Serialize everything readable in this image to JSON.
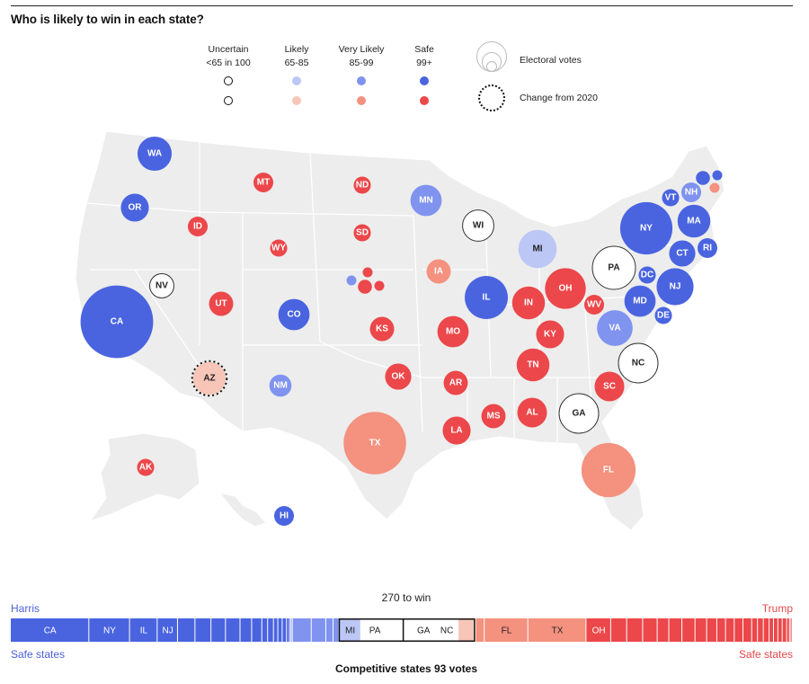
{
  "title": "Who is likely to win in each state?",
  "colors": {
    "blue_safe": "#4a64e0",
    "blue_very_likely": "#7f93ef",
    "blue_likely": "#bcc7f6",
    "red_safe": "#ec474a",
    "red_very_likely": "#f4917f",
    "red_likely": "#f8c6b8",
    "uncertain": "#ffffff",
    "land": "#ededed",
    "border": "#ffffff"
  },
  "legend": {
    "categories": [
      {
        "name": "Uncertain",
        "range": "<65 in 100",
        "blue": "uncertain",
        "red": "uncertain"
      },
      {
        "name": "Likely",
        "range": "65-85",
        "blue": "blue_likely",
        "red": "red_likely"
      },
      {
        "name": "Very Likely",
        "range": "85-99",
        "blue": "blue_very_likely",
        "red": "red_very_likely"
      },
      {
        "name": "Safe",
        "range": "99+",
        "blue": "blue_safe",
        "red": "red_safe"
      }
    ],
    "electoral_votes_label": "Electoral votes",
    "change_label": "Change from 2020"
  },
  "states": [
    {
      "abbr": "WA",
      "cat": "blue_safe",
      "ev": 12,
      "label": true
    },
    {
      "abbr": "OR",
      "cat": "blue_safe",
      "ev": 8,
      "label": true
    },
    {
      "abbr": "CA",
      "cat": "blue_safe",
      "ev": 54,
      "label": true
    },
    {
      "abbr": "NV",
      "cat": "uncertain",
      "ev": 6,
      "label": true
    },
    {
      "abbr": "ID",
      "cat": "red_safe",
      "ev": 4,
      "label": true
    },
    {
      "abbr": "MT",
      "cat": "red_safe",
      "ev": 4,
      "label": true
    },
    {
      "abbr": "WY",
      "cat": "red_safe",
      "ev": 3,
      "label": true
    },
    {
      "abbr": "UT",
      "cat": "red_safe",
      "ev": 6,
      "label": true
    },
    {
      "abbr": "AZ",
      "cat": "red_likely",
      "ev": 11,
      "label": true,
      "changed": true
    },
    {
      "abbr": "CO",
      "cat": "blue_safe",
      "ev": 10,
      "label": true
    },
    {
      "abbr": "NM",
      "cat": "blue_very_likely",
      "ev": 5,
      "label": true
    },
    {
      "abbr": "ND",
      "cat": "red_safe",
      "ev": 3,
      "label": true
    },
    {
      "abbr": "SD",
      "cat": "red_safe",
      "ev": 3,
      "label": true
    },
    {
      "abbr": "NE-AL",
      "cat": "red_safe",
      "ev": 2,
      "label": false
    },
    {
      "abbr": "NE-1",
      "cat": "red_safe",
      "ev": 1,
      "label": false
    },
    {
      "abbr": "NE-2",
      "cat": "blue_very_likely",
      "ev": 1,
      "label": false
    },
    {
      "abbr": "NE-3",
      "cat": "red_safe",
      "ev": 1,
      "label": false
    },
    {
      "abbr": "KS",
      "cat": "red_safe",
      "ev": 6,
      "label": true
    },
    {
      "abbr": "OK",
      "cat": "red_safe",
      "ev": 7,
      "label": true
    },
    {
      "abbr": "TX",
      "cat": "red_very_likely",
      "ev": 40,
      "label": true
    },
    {
      "abbr": "MN",
      "cat": "blue_very_likely",
      "ev": 10,
      "label": true
    },
    {
      "abbr": "IA",
      "cat": "red_very_likely",
      "ev": 6,
      "label": true
    },
    {
      "abbr": "MO",
      "cat": "red_safe",
      "ev": 10,
      "label": true
    },
    {
      "abbr": "AR",
      "cat": "red_safe",
      "ev": 6,
      "label": true
    },
    {
      "abbr": "LA",
      "cat": "red_safe",
      "ev": 8,
      "label": true
    },
    {
      "abbr": "WI",
      "cat": "uncertain",
      "ev": 10,
      "label": true
    },
    {
      "abbr": "IL",
      "cat": "blue_safe",
      "ev": 19,
      "label": true
    },
    {
      "abbr": "MI",
      "cat": "blue_likely",
      "ev": 15,
      "label": true
    },
    {
      "abbr": "IN",
      "cat": "red_safe",
      "ev": 11,
      "label": true
    },
    {
      "abbr": "OH",
      "cat": "red_safe",
      "ev": 17,
      "label": true
    },
    {
      "abbr": "KY",
      "cat": "red_safe",
      "ev": 8,
      "label": true
    },
    {
      "abbr": "TN",
      "cat": "red_safe",
      "ev": 11,
      "label": true
    },
    {
      "abbr": "MS",
      "cat": "red_safe",
      "ev": 6,
      "label": true
    },
    {
      "abbr": "AL",
      "cat": "red_safe",
      "ev": 9,
      "label": true
    },
    {
      "abbr": "GA",
      "cat": "uncertain",
      "ev": 16,
      "label": true
    },
    {
      "abbr": "FL",
      "cat": "red_very_likely",
      "ev": 30,
      "label": true
    },
    {
      "abbr": "SC",
      "cat": "red_safe",
      "ev": 9,
      "label": true
    },
    {
      "abbr": "NC",
      "cat": "uncertain",
      "ev": 16,
      "label": true
    },
    {
      "abbr": "VA",
      "cat": "blue_very_likely",
      "ev": 13,
      "label": true
    },
    {
      "abbr": "WV",
      "cat": "red_safe",
      "ev": 4,
      "label": true
    },
    {
      "abbr": "PA",
      "cat": "uncertain",
      "ev": 19,
      "label": true
    },
    {
      "abbr": "NY",
      "cat": "blue_safe",
      "ev": 28,
      "label": true
    },
    {
      "abbr": "NJ",
      "cat": "blue_safe",
      "ev": 14,
      "label": true
    },
    {
      "abbr": "DE",
      "cat": "blue_safe",
      "ev": 3,
      "label": true
    },
    {
      "abbr": "MD",
      "cat": "blue_safe",
      "ev": 10,
      "label": true
    },
    {
      "abbr": "DC",
      "cat": "blue_safe",
      "ev": 3,
      "label": true
    },
    {
      "abbr": "CT",
      "cat": "blue_safe",
      "ev": 7,
      "label": true
    },
    {
      "abbr": "RI",
      "cat": "blue_safe",
      "ev": 4,
      "label": true
    },
    {
      "abbr": "MA",
      "cat": "blue_safe",
      "ev": 11,
      "label": true
    },
    {
      "abbr": "VT",
      "cat": "blue_safe",
      "ev": 3,
      "label": true
    },
    {
      "abbr": "NH",
      "cat": "blue_very_likely",
      "ev": 4,
      "label": true
    },
    {
      "abbr": "ME-AL",
      "cat": "blue_safe",
      "ev": 2,
      "label": false
    },
    {
      "abbr": "ME-1",
      "cat": "blue_safe",
      "ev": 1,
      "label": false
    },
    {
      "abbr": "ME-2",
      "cat": "red_very_likely",
      "ev": 1,
      "label": false
    },
    {
      "abbr": "AK",
      "cat": "red_safe",
      "ev": 3,
      "label": true
    },
    {
      "abbr": "HI",
      "cat": "blue_safe",
      "ev": 4,
      "label": true
    }
  ],
  "bar": {
    "harris_label": "Harris",
    "trump_label": "Trump",
    "safe_left": "Safe states",
    "safe_right": "Safe states",
    "to_win": "270 to win",
    "competitive": "Competitive states 93 votes",
    "segments_left": [
      "CA",
      "NY",
      "IL",
      "NJ"
    ],
    "segments_competitive": [
      "MI",
      "PA",
      "GA",
      "NC"
    ],
    "segments_right": [
      "FL",
      "TX",
      "OH"
    ]
  }
}
